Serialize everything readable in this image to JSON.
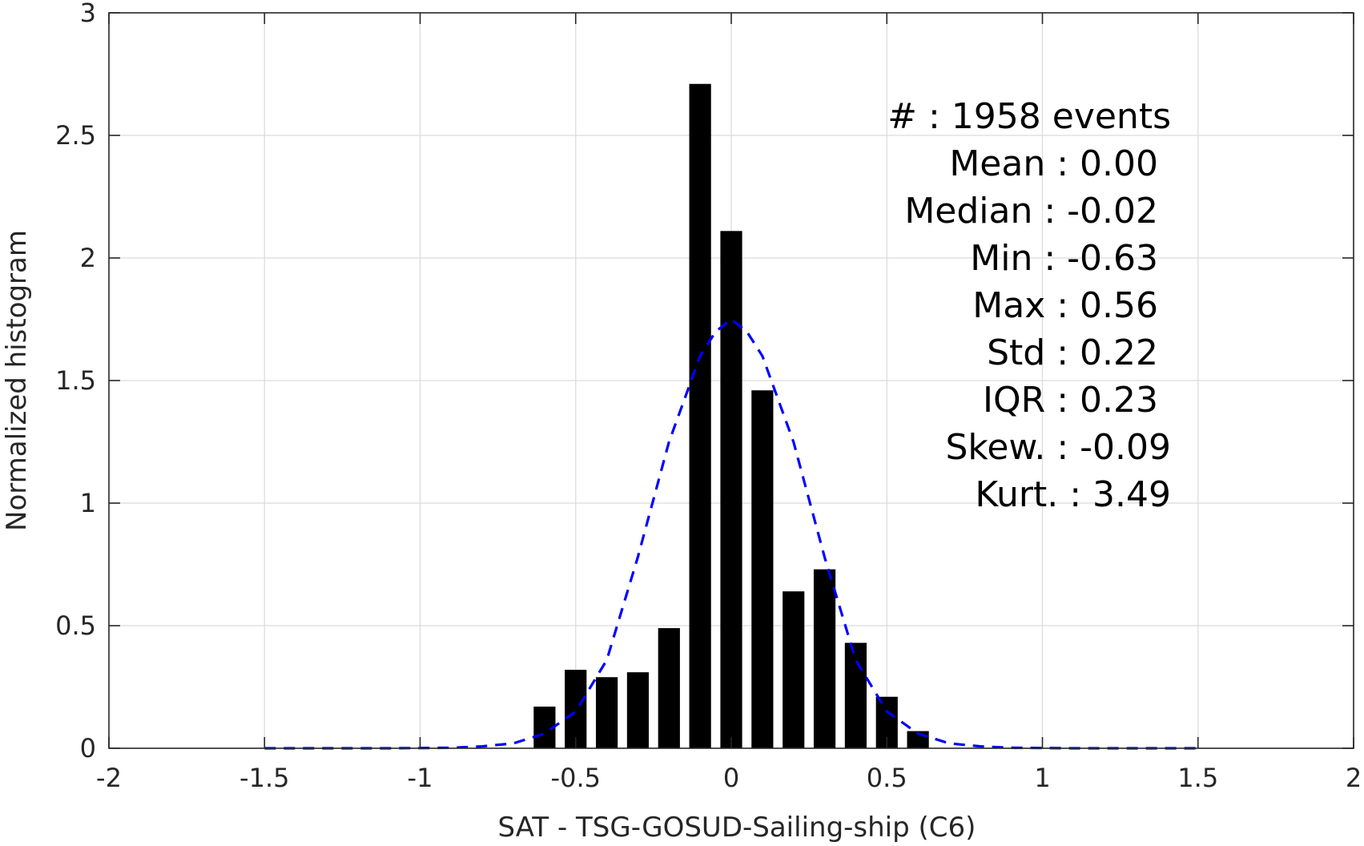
{
  "chart_data": {
    "type": "bar",
    "title": "",
    "xlabel": "SAT - TSG-GOSUD-Sailing-ship (C6)",
    "ylabel": "Normalized histogram",
    "xlim": [
      -2,
      2
    ],
    "ylim": [
      0,
      3
    ],
    "grid": true,
    "xticks": [
      -2,
      -1.5,
      -1,
      -0.5,
      0,
      0.5,
      1,
      1.5,
      2
    ],
    "xtick_labels": [
      "-2",
      "-1.5",
      "-1",
      "-0.5",
      "0",
      "0.5",
      "1",
      "1.5",
      "2"
    ],
    "yticks": [
      0,
      0.5,
      1,
      1.5,
      2,
      2.5,
      3
    ],
    "ytick_labels": [
      "0",
      "0.5",
      "1",
      "1.5",
      "2",
      "2.5",
      "3"
    ],
    "bar_width": 0.07,
    "bins": [
      -0.6,
      -0.5,
      -0.4,
      -0.3,
      -0.2,
      -0.1,
      0.0,
      0.1,
      0.2,
      0.3,
      0.4,
      0.5,
      0.6
    ],
    "values": [
      0.17,
      0.32,
      0.29,
      0.31,
      0.49,
      2.71,
      2.11,
      1.46,
      0.64,
      0.73,
      0.43,
      0.21,
      0.07
    ],
    "bar_color": "#000000",
    "fit": {
      "style": "dashed",
      "color": "#0000ff",
      "x": [
        -1.5,
        -1.3,
        -1.1,
        -0.9,
        -0.8,
        -0.7,
        -0.6,
        -0.5,
        -0.4,
        -0.3,
        -0.2,
        -0.1,
        -0.05,
        0.0,
        0.05,
        0.1,
        0.2,
        0.3,
        0.4,
        0.5,
        0.6,
        0.7,
        0.8,
        0.9,
        1.1,
        1.3,
        1.5
      ],
      "y": [
        0.0,
        0.0,
        0.0,
        0.002,
        0.008,
        0.02,
        0.06,
        0.15,
        0.36,
        0.78,
        1.25,
        1.6,
        1.7,
        1.75,
        1.7,
        1.6,
        1.25,
        0.78,
        0.36,
        0.15,
        0.06,
        0.02,
        0.008,
        0.002,
        0.0,
        0.0,
        0.0
      ]
    },
    "stats": [
      {
        "label": "#  : 1958 events",
        "anchor": "right"
      },
      {
        "label": "Mean : 0.00",
        "anchor": "right"
      },
      {
        "label": "Median : -0.02",
        "anchor": "right"
      },
      {
        "label": "Min : -0.63",
        "anchor": "right"
      },
      {
        "label": "Max : 0.56",
        "anchor": "right"
      },
      {
        "label": "Std : 0.22",
        "anchor": "right"
      },
      {
        "label": "IQR : 0.23",
        "anchor": "right"
      },
      {
        "label": "Skew. : -0.09",
        "anchor": "right"
      },
      {
        "label": "Kurt. : 3.49",
        "anchor": "right"
      }
    ]
  }
}
